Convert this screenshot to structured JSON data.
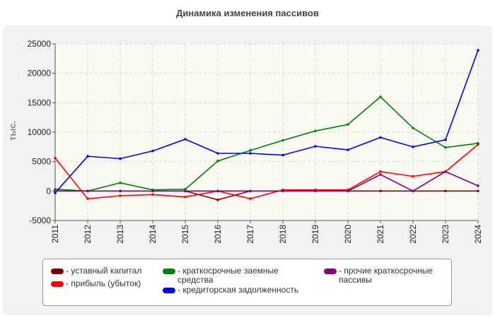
{
  "page": {
    "title": "Динамика изменения пассивов"
  },
  "chart_data": {
    "type": "line",
    "title": "Динамика изменения пассивов",
    "ylabel": "тыс.",
    "xlabel": "",
    "x": [
      "2011",
      "2012",
      "2013",
      "2014",
      "2015",
      "2016",
      "2017",
      "2018",
      "2019",
      "2020",
      "2021",
      "2022",
      "2023",
      "2024"
    ],
    "ylim": [
      -5000,
      25000
    ],
    "yticks": [
      -5000,
      0,
      5000,
      10000,
      15000,
      20000,
      25000
    ],
    "ytick_labels": [
      "-5000",
      "0",
      "5000",
      "10000",
      "15000",
      "20000",
      "25000"
    ],
    "grid": true,
    "legend_position": "bottom",
    "series": [
      {
        "name": "- уставный капитал",
        "color": "#800000",
        "values": [
          10,
          10,
          10,
          10,
          10,
          -1500,
          10,
          10,
          10,
          10,
          10,
          10,
          10,
          10
        ]
      },
      {
        "name": "- прибыль (убыток)",
        "color": "#ff0000",
        "values": [
          5600,
          -1300,
          -800,
          -600,
          -1000,
          0,
          -1300,
          200,
          200,
          200,
          3300,
          2500,
          3300,
          7900
        ]
      },
      {
        "name": "- краткосрочные заемные средства",
        "color": "#008000",
        "values": [
          300,
          0,
          1400,
          200,
          300,
          5100,
          6900,
          8600,
          10200,
          11300,
          16000,
          10700,
          7400,
          8100
        ]
      },
      {
        "name": "- кредиторская задолженность",
        "color": "#0000ff",
        "values": [
          -300,
          5900,
          5500,
          6800,
          8800,
          6400,
          6400,
          6100,
          7600,
          7000,
          9100,
          7500,
          8700,
          23900
        ]
      },
      {
        "name": "- прочие краткосрочные пассивы",
        "color": "#800080",
        "values": [
          0,
          0,
          0,
          0,
          0,
          0,
          0,
          0,
          0,
          0,
          2800,
          0,
          3300,
          900
        ]
      }
    ]
  }
}
